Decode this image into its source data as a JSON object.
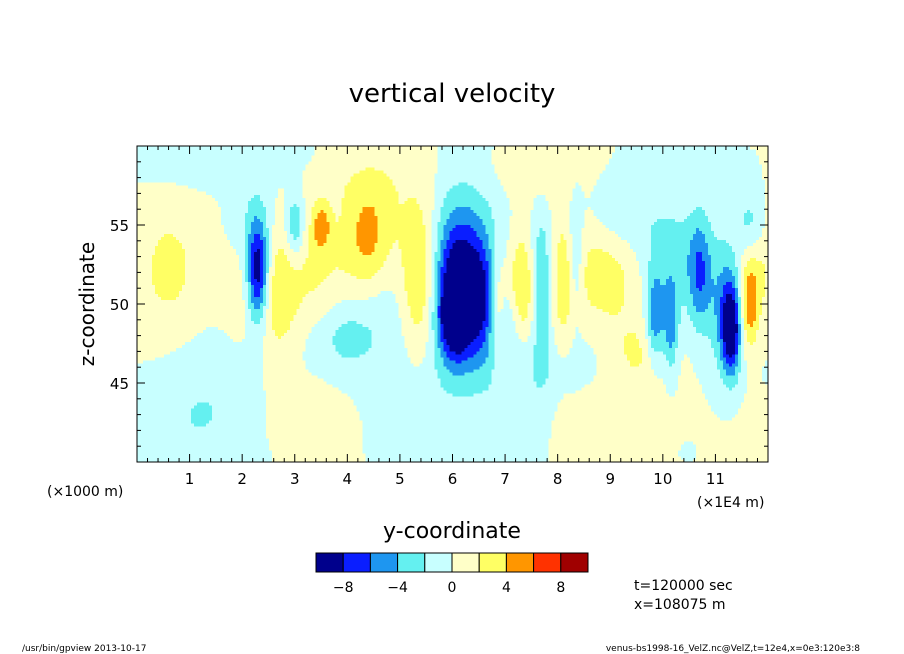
{
  "chart_data": {
    "type": "heatmap",
    "title": "vertical velocity",
    "xlabel": "y-coordinate",
    "ylabel": "z-coordinate",
    "x_units_note": "(×1E4 m)",
    "y_units_note": "(×1000 m)",
    "xlim": [
      0,
      12
    ],
    "ylim": [
      40,
      60
    ],
    "x_ticks": [
      1,
      2,
      3,
      4,
      5,
      6,
      7,
      8,
      9,
      10,
      11
    ],
    "y_ticks": [
      45,
      50,
      55
    ],
    "colorbar": {
      "colors": [
        "#00008c",
        "#0a1eff",
        "#1e96f0",
        "#64f0f0",
        "#c8ffff",
        "#ffffc8",
        "#ffff64",
        "#ff9600",
        "#ff3200",
        "#a00000"
      ],
      "tick_values": [
        -8,
        -4,
        0,
        4,
        8
      ],
      "tick_labels": [
        "−8",
        "−4",
        "0",
        "4",
        "8"
      ]
    },
    "field_blobs": [
      {
        "y": 0.6,
        "z": 52,
        "sy": 0.5,
        "sz": 4.5,
        "w": 2.2
      },
      {
        "y": 0.6,
        "z": 42,
        "sy": 0.7,
        "sz": 2.5,
        "w": -1.5
      },
      {
        "y": 1.5,
        "z": 44,
        "sy": 0.8,
        "sz": 3,
        "w": -1.8
      },
      {
        "y": 2.3,
        "z": 52,
        "sy": 0.14,
        "sz": 2.2,
        "w": -9.5
      },
      {
        "y": 2.2,
        "z": 55,
        "sy": 0.35,
        "sz": 2.5,
        "w": -2.5
      },
      {
        "y": 2.0,
        "z": 52,
        "sy": 0.3,
        "sz": 2.5,
        "w": 2
      },
      {
        "y": 2.7,
        "z": 51,
        "sy": 0.25,
        "sz": 3,
        "w": 3.5
      },
      {
        "y": 3.0,
        "z": 55,
        "sy": 0.12,
        "sz": 1.5,
        "w": -4.5
      },
      {
        "y": 3.5,
        "z": 55,
        "sy": 0.12,
        "sz": 1,
        "w": 4.5
      },
      {
        "y": 3.4,
        "z": 52,
        "sy": 0.4,
        "sz": 3,
        "w": 2
      },
      {
        "y": 4.4,
        "z": 54,
        "sy": 0.35,
        "sz": 2.5,
        "w": 5
      },
      {
        "y": 4.7,
        "z": 49,
        "sy": 0.6,
        "sz": 3,
        "w": -1.8
      },
      {
        "y": 3.9,
        "z": 48,
        "sy": 0.4,
        "sz": 1.5,
        "w": -2
      },
      {
        "y": 5.4,
        "z": 51.5,
        "sy": 0.28,
        "sz": 3.5,
        "w": 6
      },
      {
        "y": 6.1,
        "z": 51,
        "sy": 0.35,
        "sz": 3,
        "w": -9.5
      },
      {
        "y": 6.05,
        "z": 49,
        "sy": 0.2,
        "sz": 1.5,
        "w": -6
      },
      {
        "y": 6.3,
        "z": 53,
        "sy": 0.55,
        "sz": 3.5,
        "w": -3
      },
      {
        "y": 6.6,
        "z": 50,
        "sy": 0.2,
        "sz": 2.5,
        "w": -4
      },
      {
        "y": 6.85,
        "z": 50,
        "sy": 0.12,
        "sz": 2.5,
        "w": 4.5
      },
      {
        "y": 7.3,
        "z": 51,
        "sy": 0.2,
        "sz": 2.5,
        "w": 5.5
      },
      {
        "y": 7.1,
        "z": 49,
        "sy": 0.2,
        "sz": 2,
        "w": -2.5
      },
      {
        "y": 7.7,
        "z": 51,
        "sy": 0.14,
        "sz": 3.5,
        "w": -4.5
      },
      {
        "y": 8.1,
        "z": 51,
        "sy": 0.2,
        "sz": 3.5,
        "w": 2.5
      },
      {
        "y": 8.35,
        "z": 53,
        "sy": 0.1,
        "sz": 3,
        "w": -3.5
      },
      {
        "y": 7.8,
        "z": 46,
        "sy": 0.7,
        "sz": 1.8,
        "w": -1.5
      },
      {
        "y": 9.0,
        "z": 52,
        "sy": 0.6,
        "sz": 3,
        "w": 3
      },
      {
        "y": 9.2,
        "z": 56,
        "sy": 0.4,
        "sz": 2,
        "w": -2.5
      },
      {
        "y": 9.5,
        "z": 47,
        "sy": 0.35,
        "sz": 1.5,
        "w": 2
      },
      {
        "y": 10.1,
        "z": 53,
        "sy": 0.5,
        "sz": 3,
        "w": -3
      },
      {
        "y": 9.85,
        "z": 49,
        "sy": 0.12,
        "sz": 2,
        "w": -5.5
      },
      {
        "y": 10.15,
        "z": 48.5,
        "sy": 0.1,
        "sz": 2,
        "w": -5
      },
      {
        "y": 10.7,
        "z": 52,
        "sy": 0.15,
        "sz": 2.5,
        "w": -5
      },
      {
        "y": 11.3,
        "z": 48.5,
        "sy": 0.12,
        "sz": 2,
        "w": -9.5
      },
      {
        "y": 11.15,
        "z": 50,
        "sy": 0.2,
        "sz": 3,
        "w": -4
      },
      {
        "y": 11.65,
        "z": 50,
        "sy": 0.12,
        "sz": 2,
        "w": 5.5
      },
      {
        "y": 11.7,
        "z": 55,
        "sy": 0.2,
        "sz": 1.5,
        "w": -3
      },
      {
        "y": 11.9,
        "z": 53,
        "sy": 0.2,
        "sz": 3,
        "w": 2
      },
      {
        "y": 6.0,
        "z": 45,
        "sy": 1.2,
        "sz": 2.5,
        "w": -1.2
      },
      {
        "y": 3.0,
        "z": 43,
        "sy": 1.0,
        "sz": 2,
        "w": 1.2
      },
      {
        "y": 9.0,
        "z": 43,
        "sy": 1.0,
        "sz": 2,
        "w": 1.2
      },
      {
        "y": 4.0,
        "z": 58,
        "sy": 1.0,
        "sz": 1.5,
        "w": 1.3
      },
      {
        "y": 8.0,
        "z": 58.5,
        "sy": 1.0,
        "sz": 1.2,
        "w": 1.3
      },
      {
        "y": 1.5,
        "z": 59,
        "sy": 1.5,
        "sz": 1.2,
        "w": -1.4
      }
    ]
  },
  "annotations": {
    "time": "t=120000 sec",
    "position": "x=108075 m",
    "footer_left": "/usr/bin/gpview  2013-10-17",
    "footer_right": "venus-bs1998-16_VelZ.nc@VelZ,t=12e4,x=0e3:120e3:8"
  }
}
